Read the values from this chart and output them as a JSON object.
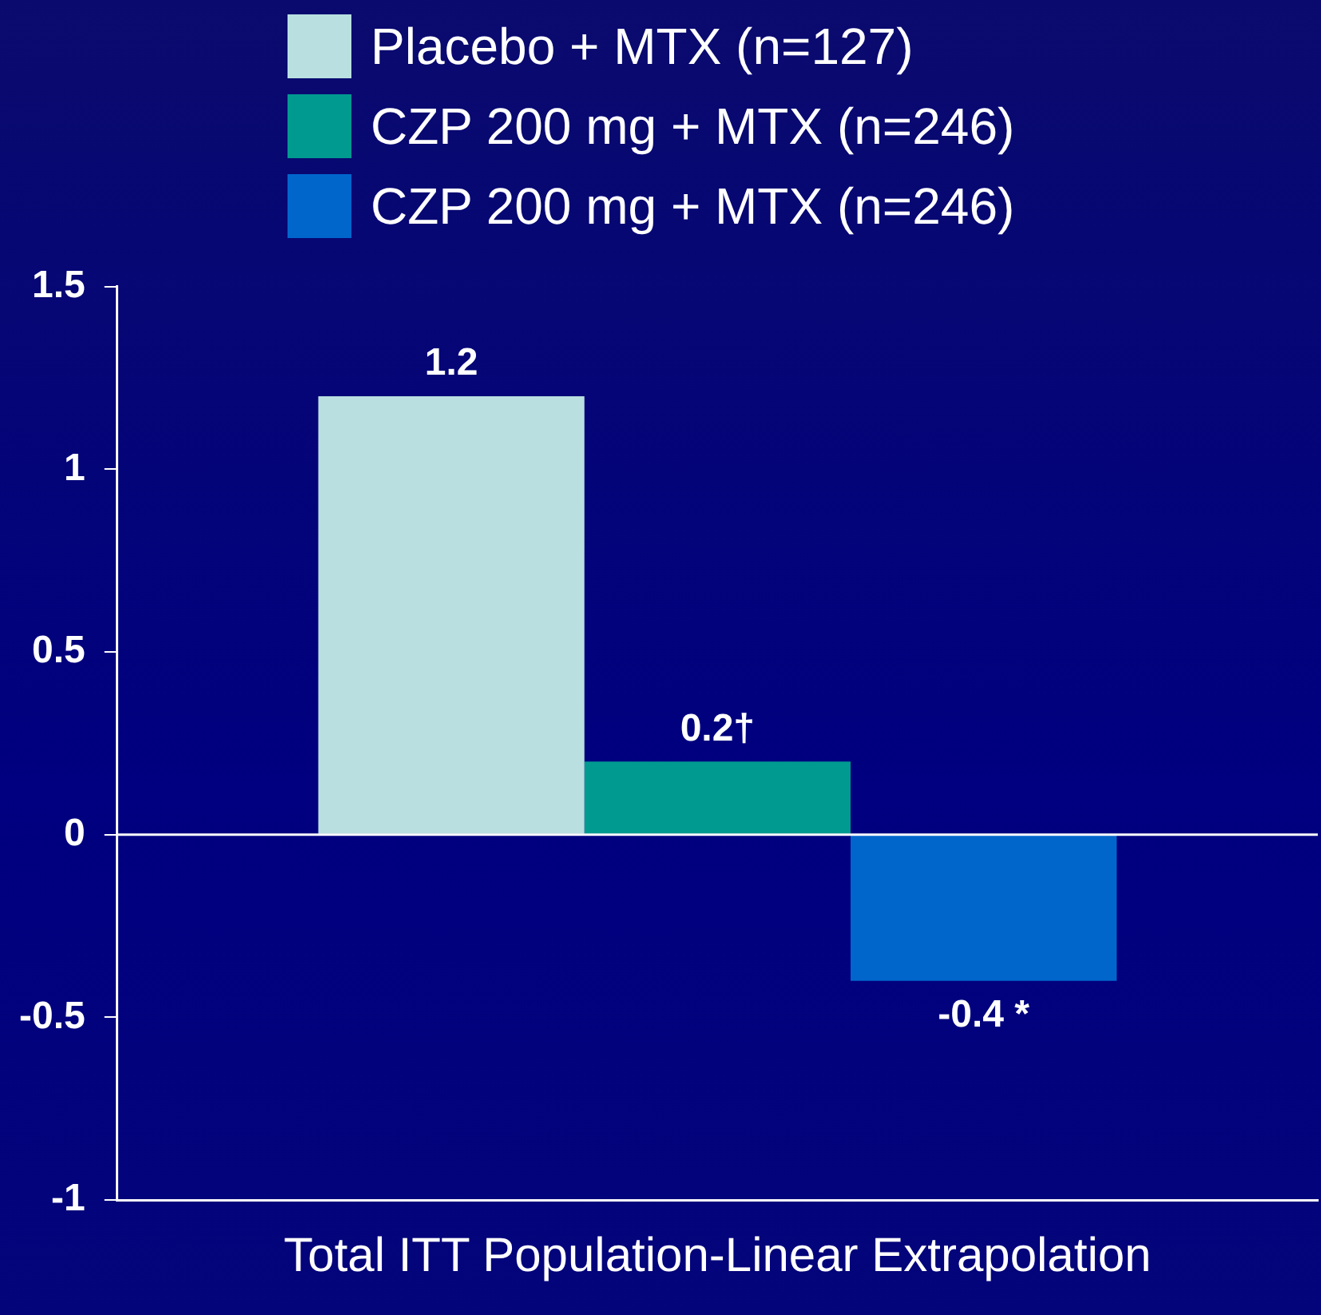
{
  "chart_data": {
    "type": "bar",
    "categories": [
      "Total ITT Population-Linear Extrapolation"
    ],
    "series": [
      {
        "name": "Placebo + MTX (n=127)",
        "color": "#b9dfe0",
        "values": [
          1.2
        ],
        "value_labels": [
          "1.2"
        ]
      },
      {
        "name": "CZP 200 mg + MTX (n=246)",
        "color": "#009a90",
        "values": [
          0.2
        ],
        "value_labels": [
          "0.2†"
        ]
      },
      {
        "name": "CZP 200 mg + MTX (n=246)",
        "color": "#0066cc",
        "values": [
          -0.4
        ],
        "value_labels": [
          "-0.4 *"
        ]
      }
    ],
    "ylim": [
      -1,
      1.5
    ],
    "yticks": [
      -1,
      -0.5,
      0,
      0.5,
      1,
      1.5
    ],
    "grid": false,
    "ref_lines": [
      {
        "axis": "y",
        "value": 0,
        "color": "#ffffff"
      }
    ],
    "legend": "top"
  }
}
